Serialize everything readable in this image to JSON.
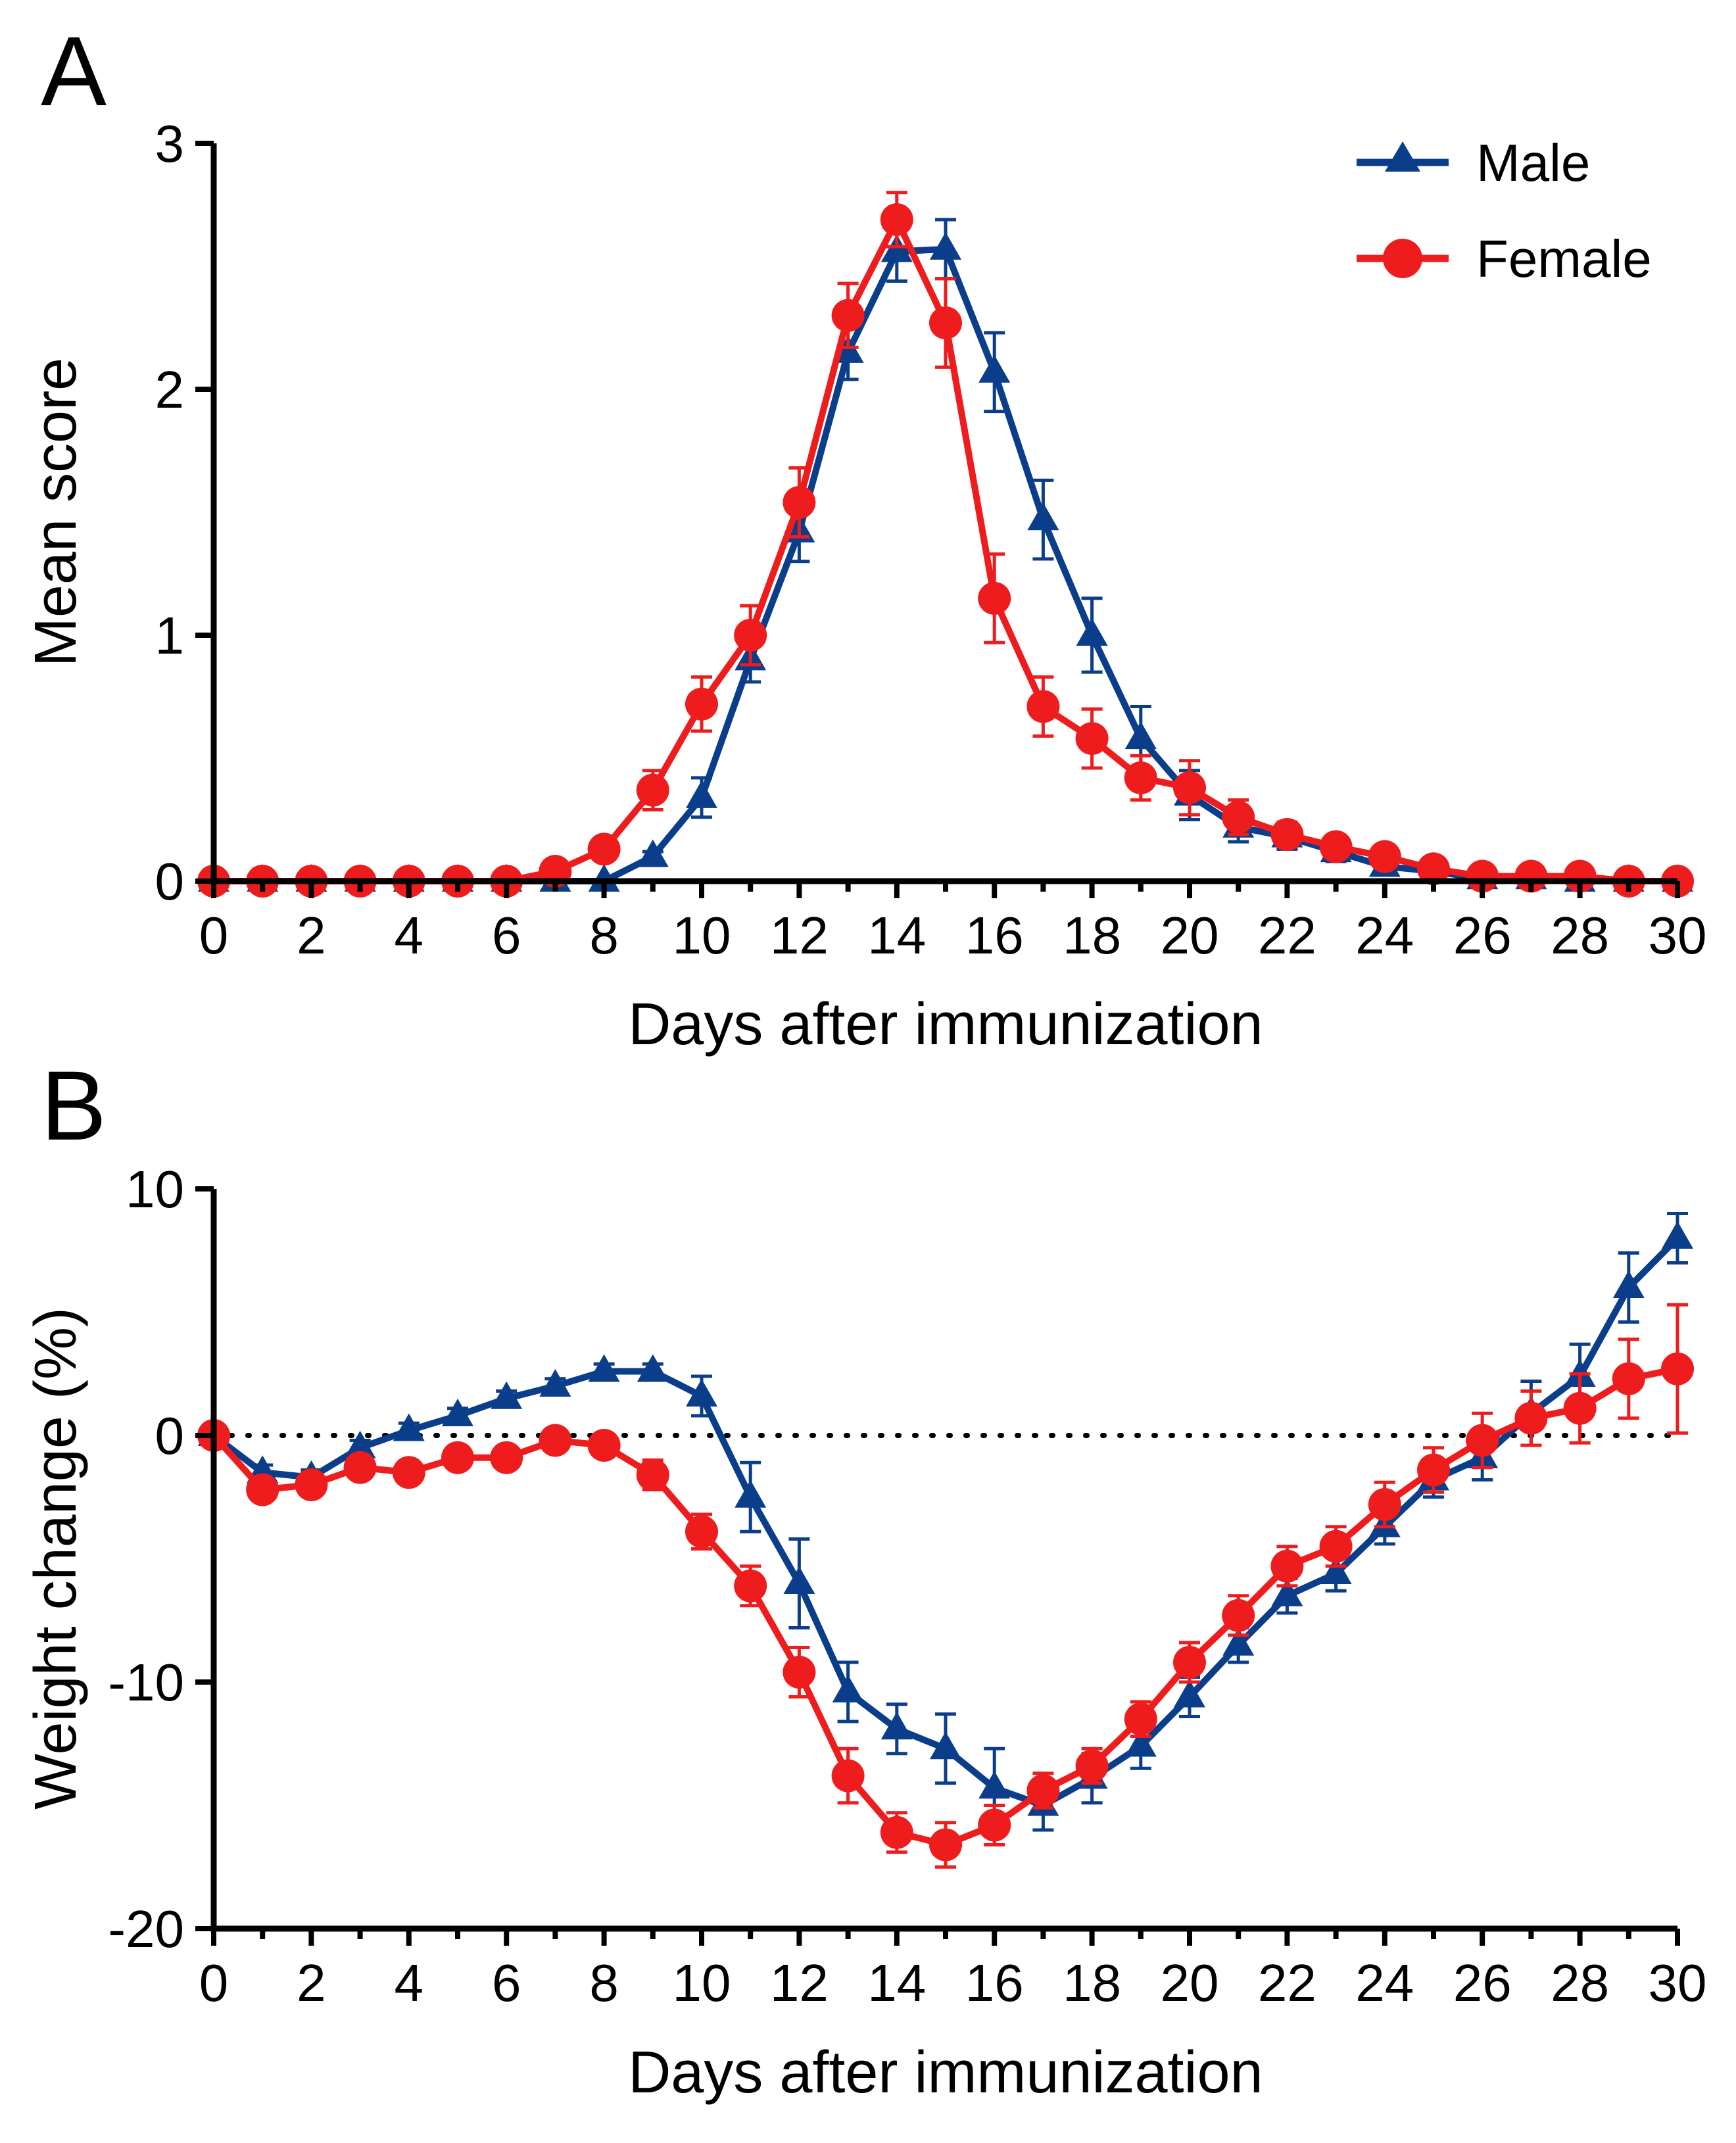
{
  "colors": {
    "male": "#0a3d8a",
    "female": "#ee1c1c"
  },
  "chart_data": [
    {
      "id": "A",
      "panel_label": "A",
      "type": "line",
      "title": "",
      "xlabel": "Days after immunization",
      "ylabel": "Mean score",
      "xlim": [
        0,
        30
      ],
      "ylim": [
        0,
        3
      ],
      "xticks": [
        0,
        2,
        4,
        6,
        8,
        10,
        12,
        14,
        16,
        18,
        20,
        22,
        24,
        26,
        28,
        30
      ],
      "xtick_labels": [
        "0",
        "2",
        "4",
        "6",
        "8",
        "10",
        "12",
        "14",
        "16",
        "18",
        "20",
        "22",
        "24",
        "26",
        "28",
        "30"
      ],
      "yticks": [
        0,
        1,
        2,
        3
      ],
      "ytick_labels": [
        "0",
        "1",
        "2",
        "3"
      ],
      "reference_line": null,
      "legend": {
        "position": "top-right",
        "entries": [
          "Male",
          "Female"
        ]
      },
      "x": [
        0,
        1,
        2,
        3,
        4,
        5,
        6,
        7,
        8,
        9,
        10,
        11,
        12,
        13,
        14,
        15,
        16,
        17,
        18,
        19,
        20,
        21,
        22,
        23,
        24,
        25,
        26,
        27,
        28,
        29,
        30
      ],
      "series": [
        {
          "name": "Male",
          "marker": "triangle",
          "color": "#0a3d8a",
          "values": [
            0,
            0,
            0,
            0,
            0,
            0,
            0,
            0,
            0,
            0.1,
            0.34,
            0.9,
            1.42,
            2.15,
            2.56,
            2.57,
            2.07,
            1.47,
            1.0,
            0.58,
            0.35,
            0.22,
            0.18,
            0.12,
            0.06,
            0.04,
            0.01,
            0.01,
            0,
            0,
            0
          ],
          "errors": [
            0,
            0,
            0,
            0,
            0,
            0,
            0,
            0,
            0,
            0.02,
            0.08,
            0.09,
            0.12,
            0.11,
            0.12,
            0.12,
            0.16,
            0.16,
            0.15,
            0.13,
            0.1,
            0.06,
            0.05,
            0.04,
            0.03,
            0.02,
            0.01,
            0.01,
            0,
            0,
            0
          ]
        },
        {
          "name": "Female",
          "marker": "circle",
          "color": "#ee1c1c",
          "values": [
            0,
            0,
            0,
            0,
            0,
            0,
            0,
            0.04,
            0.13,
            0.37,
            0.72,
            1.0,
            1.54,
            2.3,
            2.69,
            2.27,
            1.15,
            0.71,
            0.58,
            0.42,
            0.38,
            0.26,
            0.19,
            0.14,
            0.1,
            0.05,
            0.02,
            0.02,
            0.02,
            0,
            0
          ],
          "errors": [
            0,
            0,
            0,
            0,
            0,
            0,
            0,
            0.02,
            0.04,
            0.08,
            0.11,
            0.12,
            0.14,
            0.13,
            0.11,
            0.18,
            0.18,
            0.12,
            0.12,
            0.09,
            0.11,
            0.07,
            0.05,
            0.04,
            0.03,
            0.02,
            0.01,
            0.01,
            0.01,
            0,
            0
          ]
        }
      ]
    },
    {
      "id": "B",
      "panel_label": "B",
      "type": "line",
      "title": "",
      "xlabel": "Days after immunization",
      "ylabel": "Weight change (%)",
      "xlim": [
        0,
        30
      ],
      "ylim": [
        -20,
        10
      ],
      "xticks": [
        0,
        2,
        4,
        6,
        8,
        10,
        12,
        14,
        16,
        18,
        20,
        22,
        24,
        26,
        28,
        30
      ],
      "xtick_labels": [
        "0",
        "2",
        "4",
        "6",
        "8",
        "10",
        "12",
        "14",
        "16",
        "18",
        "20",
        "22",
        "24",
        "26",
        "28",
        "30"
      ],
      "yticks": [
        -20,
        -10,
        0,
        10
      ],
      "ytick_labels": [
        "-20",
        "-10",
        "0",
        "10"
      ],
      "reference_line": 0,
      "legend": null,
      "x": [
        0,
        1,
        2,
        3,
        4,
        5,
        6,
        7,
        8,
        9,
        10,
        11,
        12,
        13,
        14,
        15,
        16,
        17,
        18,
        19,
        20,
        21,
        22,
        23,
        24,
        25,
        26,
        27,
        28,
        29,
        30
      ],
      "series": [
        {
          "name": "Male",
          "marker": "triangle",
          "color": "#0a3d8a",
          "values": [
            0,
            -1.5,
            -1.7,
            -0.5,
            0.2,
            0.8,
            1.5,
            2.0,
            2.6,
            2.6,
            1.6,
            -2.5,
            -6.0,
            -10.4,
            -11.9,
            -12.7,
            -14.3,
            -15.0,
            -13.9,
            -12.6,
            -10.6,
            -8.5,
            -6.5,
            -5.6,
            -3.7,
            -1.8,
            -0.9,
            0.9,
            2.4,
            6.0,
            8.0
          ],
          "errors": [
            0,
            0.3,
            0.3,
            0.3,
            0.3,
            0.3,
            0.3,
            0.3,
            0.3,
            0.3,
            0.8,
            1.4,
            1.8,
            1.2,
            1.0,
            1.4,
            1.6,
            1.0,
            1.0,
            0.9,
            0.8,
            0.7,
            0.7,
            0.7,
            0.7,
            0.7,
            0.9,
            1.3,
            1.3,
            1.4,
            1.0
          ]
        },
        {
          "name": "Female",
          "marker": "circle",
          "color": "#ee1c1c",
          "values": [
            0,
            -2.2,
            -2.0,
            -1.3,
            -1.5,
            -0.9,
            -0.9,
            -0.2,
            -0.4,
            -1.6,
            -3.9,
            -6.1,
            -9.6,
            -13.8,
            -16.1,
            -16.6,
            -15.8,
            -14.4,
            -13.4,
            -11.5,
            -9.2,
            -7.3,
            -5.3,
            -4.5,
            -2.8,
            -1.4,
            -0.2,
            0.7,
            1.1,
            2.3,
            2.7
          ],
          "errors": [
            0,
            0.3,
            0.3,
            0.3,
            0.3,
            0.3,
            0.3,
            0.3,
            0.3,
            0.6,
            0.7,
            0.8,
            1.0,
            1.1,
            0.8,
            0.9,
            0.8,
            0.7,
            0.7,
            0.7,
            0.8,
            0.8,
            0.8,
            0.8,
            0.9,
            0.9,
            1.1,
            1.1,
            1.4,
            1.6,
            2.6
          ]
        }
      ]
    }
  ]
}
